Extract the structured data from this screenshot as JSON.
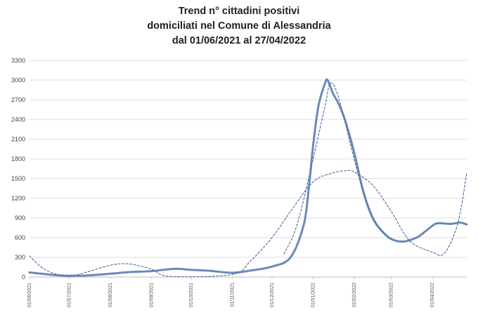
{
  "chart_data": {
    "type": "line",
    "title_lines": [
      "Trend n° cittadini positivi",
      "domiciliati nel Comune di Alessandria",
      "dal 01/06/2021 al 27/04/2022"
    ],
    "xlabel": "",
    "ylabel": "",
    "ylim": [
      0,
      3300
    ],
    "yticks": [
      0,
      300,
      600,
      900,
      1200,
      1500,
      1800,
      2100,
      2400,
      2700,
      3000,
      3300
    ],
    "x_range": [
      "01/06/2021",
      "27/04/2022"
    ],
    "x_tick_labels": [
      "01/06/2021",
      "01/07/2021",
      "01/08/2021",
      "01/09/2021",
      "01/10/2021",
      "01/11/2021",
      "01/12/2021",
      "01/01/2022",
      "01/02/2022",
      "01/03/2022",
      "01/04/2022"
    ],
    "grid": true,
    "legend": "none",
    "series": [
      {
        "style": "solid",
        "color": "#6a8ab8",
        "points": [
          [
            "01/06/2021",
            70
          ],
          [
            "10/06/2021",
            50
          ],
          [
            "20/06/2021",
            30
          ],
          [
            "01/07/2021",
            20
          ],
          [
            "15/07/2021",
            25
          ],
          [
            "01/08/2021",
            50
          ],
          [
            "15/08/2021",
            75
          ],
          [
            "01/09/2021",
            90
          ],
          [
            "10/09/2021",
            110
          ],
          [
            "20/09/2021",
            125
          ],
          [
            "01/10/2021",
            110
          ],
          [
            "15/10/2021",
            95
          ],
          [
            "01/11/2021",
            65
          ],
          [
            "15/11/2021",
            100
          ],
          [
            "01/12/2021",
            160
          ],
          [
            "15/12/2021",
            300
          ],
          [
            "25/12/2021",
            800
          ],
          [
            "29/12/2021",
            1400
          ],
          [
            "01/01/2022",
            2000
          ],
          [
            "05/01/2022",
            2600
          ],
          [
            "10/01/2022",
            2950
          ],
          [
            "12/01/2022",
            3000
          ],
          [
            "16/01/2022",
            2800
          ],
          [
            "20/01/2022",
            2650
          ],
          [
            "25/01/2022",
            2400
          ],
          [
            "01/02/2022",
            1900
          ],
          [
            "08/02/2022",
            1300
          ],
          [
            "15/02/2022",
            900
          ],
          [
            "22/02/2022",
            700
          ],
          [
            "01/03/2022",
            580
          ],
          [
            "10/03/2022",
            540
          ],
          [
            "20/03/2022",
            600
          ],
          [
            "27/03/2022",
            700
          ],
          [
            "01/04/2022",
            780
          ],
          [
            "05/04/2022",
            820
          ],
          [
            "15/04/2022",
            810
          ],
          [
            "22/04/2022",
            830
          ],
          [
            "27/04/2022",
            800
          ]
        ]
      },
      {
        "style": "dashed",
        "color": "#4a6a9a",
        "points": [
          [
            "01/06/2021",
            320
          ],
          [
            "10/06/2021",
            150
          ],
          [
            "20/06/2021",
            50
          ],
          [
            "01/07/2021",
            10
          ],
          [
            "15/07/2021",
            80
          ],
          [
            "01/08/2021",
            180
          ],
          [
            "15/08/2021",
            200
          ],
          [
            "01/09/2021",
            120
          ],
          [
            "15/09/2021",
            10
          ],
          [
            "01/11/2021",
            40
          ],
          [
            "15/11/2021",
            250
          ],
          [
            "01/12/2021",
            600
          ],
          [
            "15/12/2021",
            1000
          ],
          [
            "01/01/2022",
            1450
          ],
          [
            "15/01/2022",
            1580
          ],
          [
            "25/01/2022",
            1620
          ],
          [
            "01/02/2022",
            1600
          ],
          [
            "15/02/2022",
            1400
          ],
          [
            "01/03/2022",
            1000
          ],
          [
            "15/03/2022",
            550
          ],
          [
            "01/04/2022",
            380
          ],
          [
            "10/04/2022",
            360
          ],
          [
            "20/04/2022",
            800
          ],
          [
            "27/04/2022",
            1580
          ]
        ]
      },
      {
        "style": "dashed",
        "color": "#4a6a9a",
        "points": [
          [
            "10/12/2021",
            350
          ],
          [
            "20/12/2021",
            800
          ],
          [
            "01/01/2022",
            1800
          ],
          [
            "10/01/2022",
            2600
          ],
          [
            "14/01/2022",
            2950
          ],
          [
            "20/01/2022",
            2750
          ],
          [
            "01/02/2022",
            1800
          ],
          [
            "10/02/2022",
            1150
          ],
          [
            "20/02/2022",
            750
          ],
          [
            "01/03/2022",
            580
          ]
        ]
      }
    ]
  }
}
